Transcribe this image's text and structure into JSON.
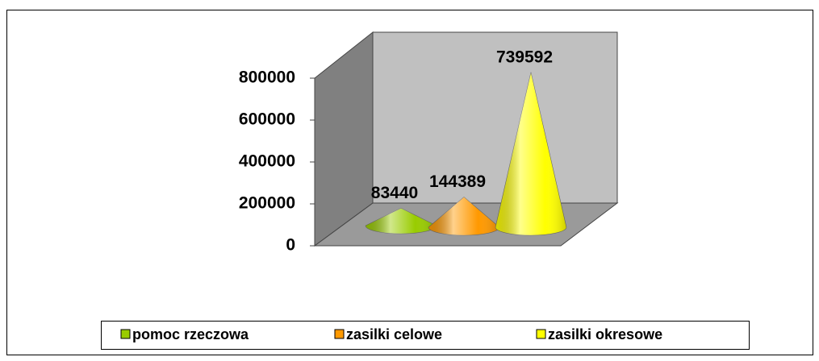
{
  "chart_data": {
    "type": "cone",
    "series": [
      {
        "name": "pomoc rzeczowa",
        "color": "#99cc00",
        "values": [
          83440
        ]
      },
      {
        "name": "zasilki celowe",
        "color": "#ff9900",
        "values": [
          144389
        ]
      },
      {
        "name": "zasilki okresowe",
        "color": "#ffff00",
        "values": [
          739592
        ]
      }
    ],
    "ylim": [
      0,
      800000
    ],
    "yticks": [
      0,
      200000,
      400000,
      600000,
      800000
    ],
    "legend": "bottom"
  }
}
